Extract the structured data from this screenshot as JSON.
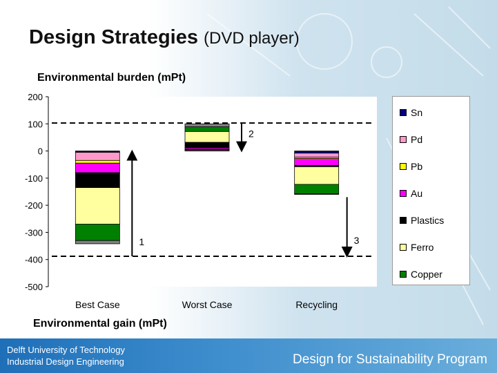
{
  "page": {
    "title": "Design Strategies",
    "title_sub": "(DVD player)",
    "label_top": "Environmental burden (mPt)",
    "label_bottom": "Environmental gain (mPt)",
    "footer_org_line1": "Delft University of Technology",
    "footer_org_line2": "Industrial Design Engineering",
    "footer_program": "Design for Sustainability Program"
  },
  "chart_data": {
    "type": "bar",
    "stacked": true,
    "categories": [
      "Best Case",
      "Worst Case",
      "Recycling"
    ],
    "ylim": [
      -500,
      200
    ],
    "yticks": [
      200,
      100,
      0,
      -100,
      -200,
      -300,
      -400,
      -500
    ],
    "legend_position": "right",
    "series": [
      {
        "name": "Sn",
        "color": "#000080",
        "values": [
          -5,
          2,
          -8
        ]
      },
      {
        "name": "Pd",
        "color": "#ff99cc",
        "values": [
          -30,
          3,
          -15
        ]
      },
      {
        "name": "Pb",
        "color": "#ffff00",
        "values": [
          -10,
          2,
          -5
        ]
      },
      {
        "name": "Au",
        "color": "#ff00ff",
        "values": [
          -35,
          5,
          -25
        ]
      },
      {
        "name": "Plastics",
        "color": "#000000",
        "values": [
          -55,
          20,
          -5
        ]
      },
      {
        "name": "Ferro",
        "color": "#ffffa0",
        "values": [
          -135,
          40,
          -65
        ]
      },
      {
        "name": "Copper",
        "color": "#008000",
        "values": [
          -60,
          17,
          -35
        ]
      },
      {
        "name": "",
        "color": "#808080",
        "values": [
          -12,
          11,
          -2
        ]
      }
    ],
    "reference_lines": [
      103,
      -388
    ],
    "annotations": [
      "1",
      "2",
      "3"
    ]
  }
}
